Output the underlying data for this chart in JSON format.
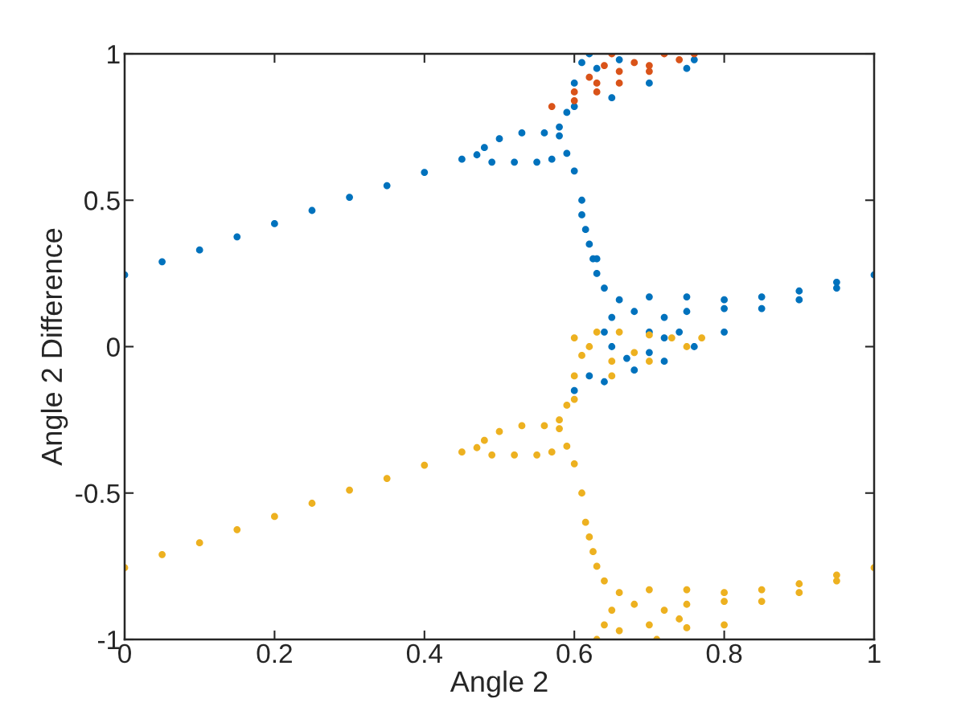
{
  "chart_data": {
    "type": "scatter",
    "xlabel": "Angle 2",
    "ylabel": "Angle 2 Difference",
    "xlim": [
      0,
      1
    ],
    "ylim": [
      -1,
      1
    ],
    "xticks": [
      0,
      0.2,
      0.4,
      0.6,
      0.8,
      1
    ],
    "yticks": [
      -1,
      -0.5,
      0,
      0.5,
      1
    ],
    "marker": "circle",
    "series": [
      {
        "color": "#0072bd",
        "x": [
          0,
          0.05,
          0.1,
          0.15,
          0.2,
          0.25,
          0.3,
          0.35,
          0.4,
          0.45,
          0.47,
          0.48,
          0.5,
          0.53,
          0.56,
          0.58,
          0.49,
          0.52,
          0.55,
          0.57,
          0.59,
          0.58,
          0.59,
          0.6,
          0.61,
          0.62,
          0.6,
          0.65,
          0.7,
          0.75,
          0.76,
          0.63,
          0.66,
          0.6,
          0.61,
          0.615,
          0.62,
          0.625,
          0.63,
          0.64,
          0.61,
          0.63,
          0.66,
          0.7,
          0.75,
          0.8,
          0.85,
          0.9,
          0.95,
          1.0,
          0.75,
          0.8,
          0.85,
          0.9,
          0.95,
          0.65,
          0.64,
          0.65,
          0.67,
          0.7,
          0.72,
          0.72,
          0.68,
          0.62,
          0.6,
          0.64,
          0.68,
          0.72,
          0.76,
          0.8,
          0.74,
          0.7
        ],
        "values": [
          0.245,
          0.29,
          0.33,
          0.375,
          0.42,
          0.465,
          0.51,
          0.55,
          0.595,
          0.64,
          0.655,
          0.68,
          0.71,
          0.73,
          0.73,
          0.72,
          0.63,
          0.63,
          0.63,
          0.64,
          0.66,
          0.75,
          0.8,
          0.9,
          0.97,
          1.0,
          0.82,
          0.85,
          0.9,
          0.95,
          0.98,
          0.95,
          0.98,
          0.6,
          0.5,
          0.4,
          0.35,
          0.3,
          0.25,
          0.2,
          0.45,
          0.3,
          0.16,
          0.17,
          0.17,
          0.16,
          0.17,
          0.19,
          0.22,
          0.245,
          0.12,
          0.13,
          0.13,
          0.16,
          0.2,
          0.1,
          0.05,
          0.0,
          -0.04,
          -0.02,
          0.03,
          0.1,
          0.12,
          -0.1,
          -0.15,
          -0.12,
          -0.08,
          -0.05,
          0.0,
          0.05,
          0.05,
          0.05
        ]
      },
      {
        "color": "#d95319",
        "x": [
          0.57,
          0.6,
          0.63,
          0.66,
          0.7,
          0.74,
          0.76,
          0.6,
          0.62,
          0.64,
          0.65,
          0.68,
          0.7,
          0.72,
          0.66,
          0.63
        ],
        "values": [
          0.82,
          0.84,
          0.87,
          0.9,
          0.94,
          0.98,
          1.0,
          0.87,
          0.92,
          0.96,
          1.0,
          0.97,
          0.96,
          1.0,
          0.94,
          0.9
        ]
      },
      {
        "color": "#edb120",
        "x": [
          0,
          0.05,
          0.1,
          0.15,
          0.2,
          0.25,
          0.3,
          0.35,
          0.4,
          0.45,
          0.47,
          0.48,
          0.5,
          0.53,
          0.56,
          0.58,
          0.49,
          0.52,
          0.55,
          0.57,
          0.59,
          0.58,
          0.59,
          0.6,
          0.61,
          0.62,
          0.6,
          0.65,
          0.7,
          0.75,
          0.77,
          0.6,
          0.63,
          0.66,
          0.7,
          0.73,
          0.65,
          0.68,
          0.6,
          0.61,
          0.615,
          0.62,
          0.625,
          0.63,
          0.64,
          0.66,
          0.7,
          0.75,
          0.8,
          0.85,
          0.9,
          0.95,
          1.0,
          0.75,
          0.8,
          0.85,
          0.9,
          0.95,
          0.65,
          0.64,
          0.63,
          0.66,
          0.7,
          0.72,
          0.68,
          0.71,
          0.75,
          0.8,
          0.74
        ],
        "values": [
          -0.755,
          -0.71,
          -0.67,
          -0.625,
          -0.58,
          -0.535,
          -0.49,
          -0.45,
          -0.405,
          -0.36,
          -0.345,
          -0.32,
          -0.29,
          -0.27,
          -0.27,
          -0.28,
          -0.37,
          -0.37,
          -0.37,
          -0.36,
          -0.34,
          -0.25,
          -0.2,
          -0.1,
          -0.03,
          0.0,
          -0.18,
          -0.1,
          -0.05,
          0.0,
          0.03,
          0.03,
          0.05,
          0.05,
          0.04,
          0.03,
          -0.05,
          -0.02,
          -0.4,
          -0.5,
          -0.6,
          -0.65,
          -0.7,
          -0.75,
          -0.8,
          -0.84,
          -0.83,
          -0.83,
          -0.84,
          -0.83,
          -0.81,
          -0.78,
          -0.755,
          -0.88,
          -0.87,
          -0.87,
          -0.84,
          -0.8,
          -0.9,
          -0.95,
          -1.0,
          -0.97,
          -0.95,
          -0.9,
          -0.88,
          -1.0,
          -0.96,
          -0.95,
          -0.93
        ]
      }
    ]
  }
}
